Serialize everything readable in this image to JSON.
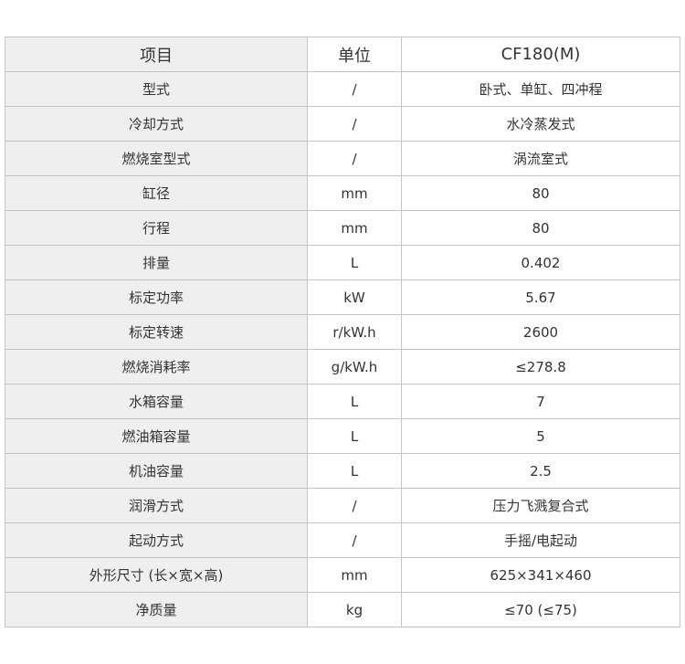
{
  "header": {
    "item": "项目",
    "unit": "单位",
    "model": "CF180(M)"
  },
  "rows": [
    {
      "item": "型式",
      "unit": "/",
      "value": "卧式、单缸、四冲程"
    },
    {
      "item": "冷却方式",
      "unit": "/",
      "value": "水冷蒸发式"
    },
    {
      "item": "燃烧室型式",
      "unit": "/",
      "value": "涡流室式"
    },
    {
      "item": "缸径",
      "unit": "mm",
      "value": "80"
    },
    {
      "item": "行程",
      "unit": "mm",
      "value": "80"
    },
    {
      "item": "排量",
      "unit": "L",
      "value": "0.402"
    },
    {
      "item": "标定功率",
      "unit": "kW",
      "value": "5.67"
    },
    {
      "item": "标定转速",
      "unit": "r/kW.h",
      "value": "2600"
    },
    {
      "item": "燃烧消耗率",
      "unit": "g/kW.h",
      "value": "≤278.8"
    },
    {
      "item": "水箱容量",
      "unit": "L",
      "value": "7"
    },
    {
      "item": "燃油箱容量",
      "unit": "L",
      "value": "5"
    },
    {
      "item": "机油容量",
      "unit": "L",
      "value": "2.5"
    },
    {
      "item": "润滑方式",
      "unit": "/",
      "value": "压力飞溅复合式"
    },
    {
      "item": "起动方式",
      "unit": "/",
      "value": "手摇/电起动"
    },
    {
      "item": "外形尺寸 (长×宽×高)",
      "unit": "mm",
      "value": "625×341×460"
    },
    {
      "item": "净质量",
      "unit": "kg",
      "value": "≤70 (≤75)"
    }
  ]
}
